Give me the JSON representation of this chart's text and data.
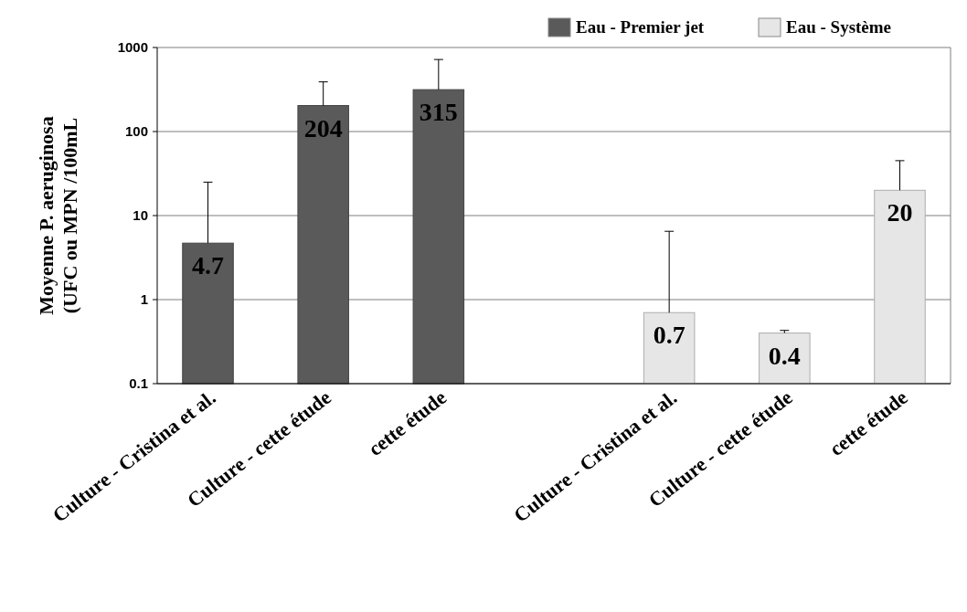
{
  "chart_data": {
    "type": "bar",
    "ylabel": "Moyenne P. aeruginosa\n(UFC ou MPN /100mL",
    "categories": [
      "Culture - Cristina et al.",
      "Culture - cette étude",
      "cette étude",
      null,
      "Culture - Cristina et al.",
      "Culture - cette étude",
      "cette étude"
    ],
    "series": [
      {
        "name": "Eau - Premier jet",
        "color": "#5a5a5a",
        "values": [
          4.7,
          204,
          315,
          null,
          null,
          null,
          null
        ],
        "errors": [
          [
            4.7,
            25
          ],
          [
            204,
            390
          ],
          [
            315,
            720
          ],
          null,
          null,
          null,
          null
        ]
      },
      {
        "name": "Eau - Système",
        "color": "#e6e6e6",
        "values": [
          null,
          null,
          null,
          null,
          0.7,
          0.4,
          20
        ],
        "errors": [
          null,
          null,
          null,
          null,
          [
            0.7,
            6.5
          ],
          [
            0.4,
            0.43
          ],
          [
            20,
            45
          ]
        ]
      }
    ],
    "log": true,
    "ylim": [
      0.1,
      1000
    ],
    "yticks": [
      0.1,
      1,
      10,
      100,
      1000
    ],
    "grid": "y",
    "legend": "top right",
    "data_labels": true
  }
}
